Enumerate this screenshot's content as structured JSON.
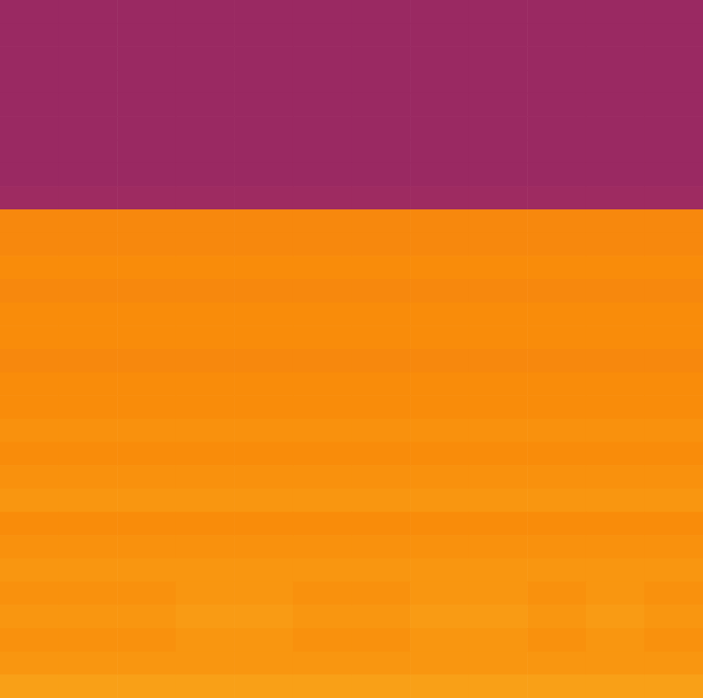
{
  "chart_data": {
    "type": "heatmap",
    "xlim": [
      0,
      12
    ],
    "ylim": [
      0,
      30
    ],
    "zlim": [
      0,
      1
    ],
    "tick_labels": false,
    "cells": [
      [
        0.42,
        0.42,
        0.42,
        0.42,
        0.42,
        0.42,
        0.42,
        0.42,
        0.42,
        0.42,
        0.42,
        0.42
      ],
      [
        0.42,
        0.42,
        0.42,
        0.42,
        0.42,
        0.42,
        0.42,
        0.42,
        0.42,
        0.42,
        0.42,
        0.42
      ],
      [
        0.42,
        0.42,
        0.42,
        0.42,
        0.42,
        0.42,
        0.42,
        0.42,
        0.42,
        0.42,
        0.42,
        0.42
      ],
      [
        0.42,
        0.42,
        0.42,
        0.42,
        0.42,
        0.42,
        0.42,
        0.42,
        0.42,
        0.42,
        0.42,
        0.42
      ],
      [
        0.42,
        0.42,
        0.42,
        0.42,
        0.42,
        0.42,
        0.42,
        0.42,
        0.42,
        0.42,
        0.42,
        0.42
      ],
      [
        0.42,
        0.42,
        0.42,
        0.42,
        0.42,
        0.42,
        0.42,
        0.42,
        0.42,
        0.42,
        0.42,
        0.42
      ],
      [
        0.42,
        0.42,
        0.42,
        0.42,
        0.42,
        0.42,
        0.42,
        0.42,
        0.42,
        0.42,
        0.42,
        0.42
      ],
      [
        0.42,
        0.42,
        0.42,
        0.42,
        0.42,
        0.42,
        0.42,
        0.42,
        0.42,
        0.42,
        0.42,
        0.42
      ],
      [
        0.43,
        0.43,
        0.43,
        0.43,
        0.43,
        0.43,
        0.43,
        0.43,
        0.43,
        0.43,
        0.43,
        0.43
      ],
      [
        0.74,
        0.74,
        0.74,
        0.74,
        0.74,
        0.74,
        0.74,
        0.74,
        0.74,
        0.74,
        0.74,
        0.74
      ],
      [
        0.74,
        0.74,
        0.74,
        0.74,
        0.74,
        0.74,
        0.74,
        0.74,
        0.74,
        0.74,
        0.74,
        0.74
      ],
      [
        0.75,
        0.75,
        0.75,
        0.75,
        0.75,
        0.75,
        0.75,
        0.75,
        0.75,
        0.75,
        0.75,
        0.75
      ],
      [
        0.74,
        0.74,
        0.74,
        0.74,
        0.74,
        0.74,
        0.74,
        0.74,
        0.74,
        0.74,
        0.74,
        0.74
      ],
      [
        0.75,
        0.75,
        0.75,
        0.75,
        0.75,
        0.75,
        0.75,
        0.75,
        0.75,
        0.75,
        0.75,
        0.75
      ],
      [
        0.75,
        0.75,
        0.75,
        0.75,
        0.75,
        0.75,
        0.75,
        0.75,
        0.75,
        0.75,
        0.75,
        0.75
      ],
      [
        0.74,
        0.74,
        0.74,
        0.74,
        0.74,
        0.74,
        0.74,
        0.74,
        0.74,
        0.74,
        0.74,
        0.74
      ],
      [
        0.75,
        0.75,
        0.75,
        0.75,
        0.75,
        0.75,
        0.75,
        0.75,
        0.75,
        0.75,
        0.75,
        0.75
      ],
      [
        0.75,
        0.75,
        0.75,
        0.75,
        0.75,
        0.75,
        0.75,
        0.75,
        0.75,
        0.75,
        0.75,
        0.75
      ],
      [
        0.76,
        0.76,
        0.76,
        0.76,
        0.76,
        0.76,
        0.76,
        0.76,
        0.76,
        0.76,
        0.76,
        0.76
      ],
      [
        0.75,
        0.75,
        0.75,
        0.75,
        0.75,
        0.75,
        0.75,
        0.75,
        0.75,
        0.75,
        0.75,
        0.75
      ],
      [
        0.76,
        0.76,
        0.76,
        0.76,
        0.76,
        0.76,
        0.76,
        0.76,
        0.76,
        0.76,
        0.76,
        0.76
      ],
      [
        0.77,
        0.77,
        0.77,
        0.77,
        0.77,
        0.77,
        0.77,
        0.77,
        0.77,
        0.77,
        0.77,
        0.77
      ],
      [
        0.75,
        0.75,
        0.75,
        0.75,
        0.75,
        0.75,
        0.75,
        0.75,
        0.75,
        0.75,
        0.75,
        0.75
      ],
      [
        0.76,
        0.76,
        0.76,
        0.76,
        0.76,
        0.76,
        0.76,
        0.76,
        0.76,
        0.76,
        0.76,
        0.76
      ],
      [
        0.77,
        0.77,
        0.77,
        0.77,
        0.77,
        0.77,
        0.77,
        0.77,
        0.77,
        0.77,
        0.77,
        0.77
      ],
      [
        0.76,
        0.76,
        0.76,
        0.77,
        0.77,
        0.76,
        0.76,
        0.77,
        0.77,
        0.76,
        0.77,
        0.76
      ],
      [
        0.77,
        0.77,
        0.77,
        0.78,
        0.78,
        0.77,
        0.77,
        0.78,
        0.78,
        0.77,
        0.78,
        0.77
      ],
      [
        0.76,
        0.76,
        0.76,
        0.77,
        0.77,
        0.76,
        0.76,
        0.77,
        0.77,
        0.76,
        0.77,
        0.76
      ],
      [
        0.77,
        0.77,
        0.77,
        0.77,
        0.77,
        0.77,
        0.77,
        0.77,
        0.77,
        0.77,
        0.77,
        0.77
      ],
      [
        0.79,
        0.79,
        0.79,
        0.79,
        0.79,
        0.79,
        0.79,
        0.79,
        0.79,
        0.79,
        0.79,
        0.79
      ]
    ]
  }
}
